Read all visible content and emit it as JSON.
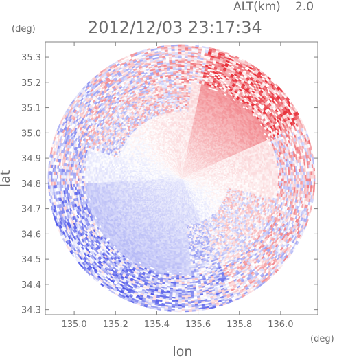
{
  "chart_data": {
    "type": "heatmap",
    "title": "2012/12/03 23:17:34",
    "altitude_label": "ALT(km)",
    "altitude_value": "2.0",
    "xlabel": "lon",
    "ylabel": "lat",
    "x_unit": "(deg)",
    "y_unit": "(deg)",
    "xlim": [
      134.86,
      136.18
    ],
    "ylim": [
      34.28,
      35.36
    ],
    "xticks": [
      {
        "value": 135.0,
        "label": "135.0"
      },
      {
        "value": 135.2,
        "label": "135.2"
      },
      {
        "value": 135.4,
        "label": "135.4"
      },
      {
        "value": 135.6,
        "label": "135.6"
      },
      {
        "value": 135.8,
        "label": "135.8"
      },
      {
        "value": 136.0,
        "label": "136.0"
      }
    ],
    "yticks": [
      {
        "value": 34.3,
        "label": "34.3"
      },
      {
        "value": 34.4,
        "label": "34.4"
      },
      {
        "value": 34.5,
        "label": "34.5"
      },
      {
        "value": 34.6,
        "label": "34.6"
      },
      {
        "value": 34.7,
        "label": "34.7"
      },
      {
        "value": 34.8,
        "label": "34.8"
      },
      {
        "value": 34.9,
        "label": "34.9"
      },
      {
        "value": 35.0,
        "label": "35.0"
      },
      {
        "value": 35.1,
        "label": "35.1"
      },
      {
        "value": 35.2,
        "label": "35.2"
      },
      {
        "value": 35.3,
        "label": "35.3"
      }
    ],
    "radar_center": {
      "lon": 135.52,
      "lat": 34.82
    },
    "radar_radius_deg_lat": 0.53,
    "colors": {
      "positive": "#e8323c",
      "negative": "#3c46e6",
      "neutral": "#ffffff",
      "axis": "#808080"
    }
  }
}
